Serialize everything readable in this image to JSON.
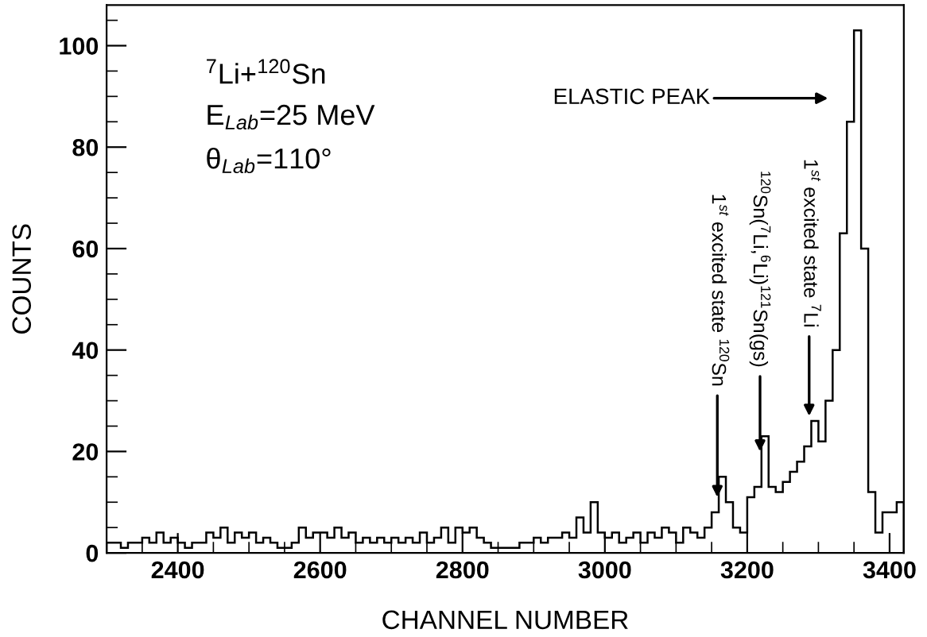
{
  "chart_data": {
    "type": "histogram",
    "xlabel": "CHANNEL NUMBER",
    "ylabel": "COUNTS",
    "bins": [
      2300,
      2310,
      2320,
      2330,
      2340,
      2350,
      2360,
      2370,
      2380,
      2390,
      2400,
      2410,
      2420,
      2430,
      2440,
      2450,
      2460,
      2470,
      2480,
      2490,
      2500,
      2510,
      2520,
      2530,
      2540,
      2550,
      2560,
      2570,
      2580,
      2590,
      2600,
      2610,
      2620,
      2630,
      2640,
      2650,
      2660,
      2670,
      2680,
      2690,
      2700,
      2710,
      2720,
      2730,
      2740,
      2750,
      2760,
      2770,
      2780,
      2790,
      2800,
      2810,
      2820,
      2830,
      2840,
      2850,
      2860,
      2870,
      2880,
      2890,
      2900,
      2910,
      2920,
      2930,
      2940,
      2950,
      2960,
      2970,
      2980,
      2990,
      3000,
      3010,
      3020,
      3030,
      3040,
      3050,
      3060,
      3070,
      3080,
      3090,
      3100,
      3110,
      3120,
      3130,
      3140,
      3150,
      3160,
      3170,
      3180,
      3190,
      3200,
      3210,
      3220,
      3230,
      3240,
      3250,
      3260,
      3270,
      3280,
      3290,
      3300,
      3310,
      3320,
      3330,
      3340,
      3350,
      3360,
      3370,
      3380,
      3390,
      3400,
      3410,
      3420
    ],
    "values": [
      2,
      2,
      1,
      2,
      2,
      3,
      2,
      4,
      2,
      3,
      2,
      1,
      2,
      2,
      4,
      3,
      5,
      2,
      4,
      3,
      4,
      2,
      3,
      2,
      1,
      1,
      2,
      5,
      3,
      4,
      4,
      3,
      5,
      3,
      4,
      2,
      3,
      2,
      3,
      2,
      3,
      2,
      3,
      2,
      4,
      2,
      3,
      5,
      2,
      5,
      4,
      5,
      3,
      2,
      1,
      1,
      1,
      1,
      2,
      2,
      3,
      2,
      3,
      3,
      4,
      3,
      7,
      4,
      10,
      4,
      3,
      4,
      2,
      3,
      4,
      2,
      4,
      3,
      5,
      4,
      2,
      5,
      4,
      3,
      5,
      8,
      15,
      10,
      5,
      4,
      11,
      13,
      23,
      13,
      12,
      14,
      16,
      18,
      21,
      26,
      22,
      30,
      40,
      63,
      85,
      103,
      60,
      12,
      4,
      8,
      8,
      10
    ],
    "color": "#000000",
    "xlim": [
      2300,
      3420
    ],
    "ylim": [
      0,
      108
    ],
    "xticks": [
      2400,
      2600,
      2800,
      3000,
      3200,
      3400
    ],
    "yticks": [
      0,
      20,
      40,
      60,
      80,
      100
    ],
    "grid": false,
    "legend": false,
    "annotations": [
      "$^{7}$Li+$^{120}$Sn",
      "E$_{Lab}$=25 MeV",
      "θ$_{Lab}$=110°",
      "ELASTIC PEAK",
      {
        "text": "1$^{st}$ excited state $^{120}$Sn",
        "x": 3158,
        "y": 11
      },
      {
        "text": "$^{120}$Sn($^{7}$Li,$^{6}$Li)$^{121}$Sn(gs)",
        "x": 3218,
        "y": 20
      },
      {
        "text": "1$^{st}$ excited state $^{7}$Li",
        "x": 3287,
        "y": 27
      }
    ]
  }
}
